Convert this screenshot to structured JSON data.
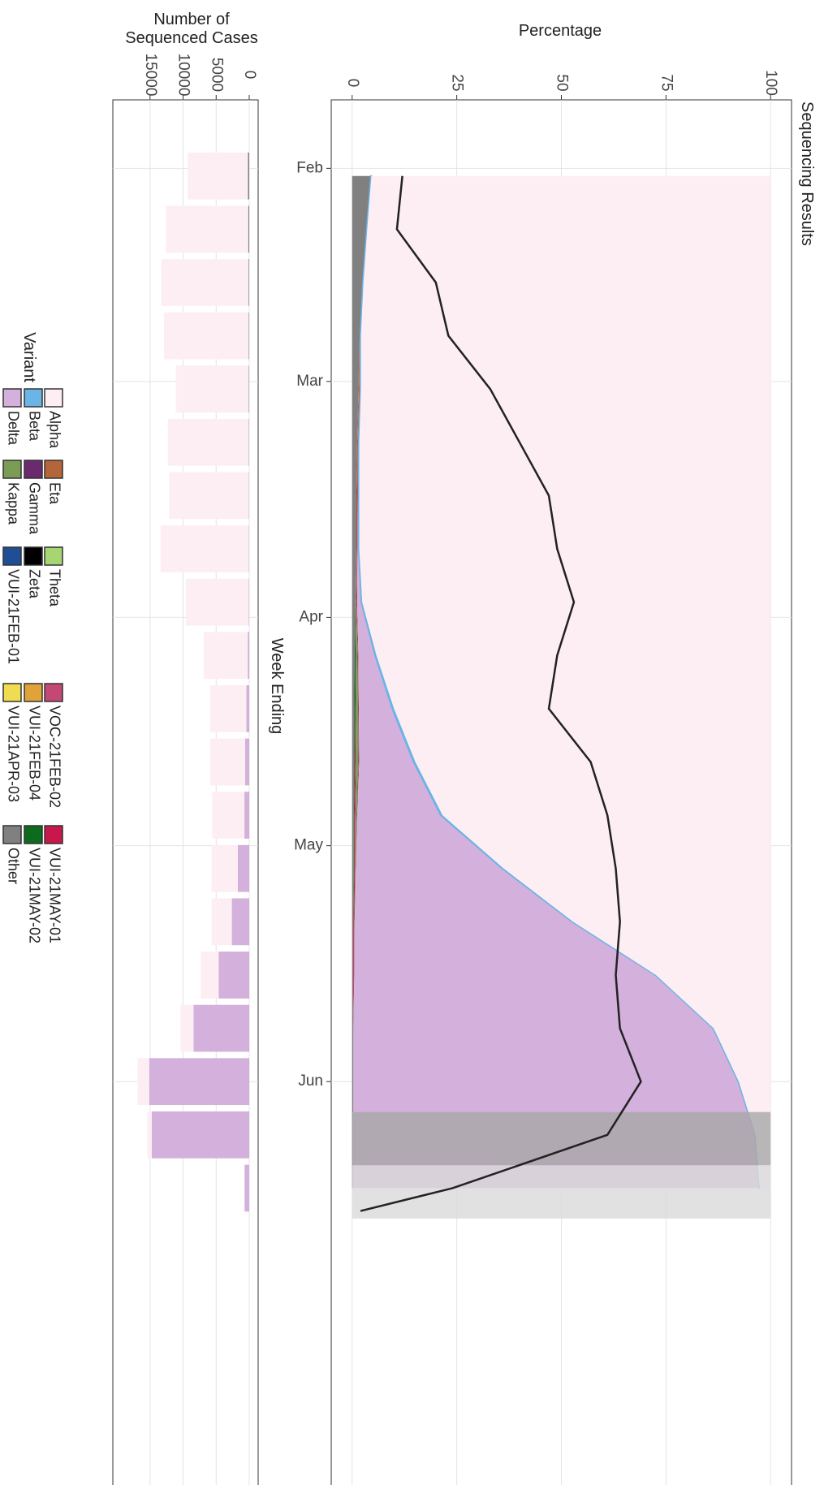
{
  "chart_data": {
    "type": "area",
    "title": "Sequencing Results",
    "x_label": "Week Ending",
    "y_label": "Percentage",
    "y2_label": "Number of Sequenced Cases",
    "legend_title": "Variant",
    "xlim": [
      23,
      205
    ],
    "xticks": [
      {
        "value": 32,
        "label": "Feb"
      },
      {
        "value": 60,
        "label": "Mar"
      },
      {
        "value": 91,
        "label": "Apr"
      },
      {
        "value": 121,
        "label": "May"
      },
      {
        "value": 152,
        "label": "Jun"
      }
    ],
    "ylim": [
      -5,
      105
    ],
    "yticks": [
      0,
      25,
      50,
      75,
      100
    ],
    "y2lim": [
      0,
      17800
    ],
    "y2ticks": [
      0,
      5000,
      10000,
      15000
    ],
    "grid": true,
    "x": [
      33,
      40,
      47,
      54,
      61,
      68,
      75,
      82,
      89,
      96,
      103,
      110,
      117,
      124,
      131,
      138,
      145,
      152,
      159,
      166
    ],
    "series": [
      {
        "name": "Alpha",
        "color": "#fdeef4",
        "values": [
          95.4,
          96.4,
          97.3,
          97.9,
          97.9,
          98.3,
          98.3,
          98.3,
          97.6,
          94.2,
          90,
          84.9,
          78.4,
          63.8,
          47.2,
          27.4,
          13.6,
          7.6,
          3.6,
          2.6
        ]
      },
      {
        "name": "Beta",
        "color": "#6ab4e6",
        "values": [
          0.1,
          0.1,
          0.1,
          0.1,
          0.1,
          0.1,
          0.1,
          0.1,
          0.2,
          0.3,
          0.4,
          0.4,
          0.4,
          0.3,
          0.2,
          0.1,
          0.1,
          0.1,
          0.1,
          0.1
        ]
      },
      {
        "name": "Delta",
        "color": "#d4b0dc",
        "values": [
          0,
          0,
          0,
          0,
          0.1,
          0.1,
          0.2,
          0.3,
          1,
          4,
          8,
          13,
          20,
          35,
          52,
          72,
          86,
          92,
          96,
          97
        ]
      },
      {
        "name": "Eta",
        "color": "#b5653a",
        "values": [
          0,
          0,
          0.1,
          0.2,
          0.3,
          0.2,
          0.2,
          0.1,
          0.1,
          0.1,
          0.1,
          0.1,
          0,
          0,
          0,
          0,
          0,
          0,
          0,
          0
        ]
      },
      {
        "name": "Gamma",
        "color": "#6b2a6e",
        "values": [
          0,
          0,
          0,
          0,
          0,
          0,
          0.1,
          0.1,
          0.1,
          0.1,
          0.1,
          0.1,
          0.1,
          0,
          0,
          0,
          0,
          0,
          0,
          0
        ]
      },
      {
        "name": "Kappa",
        "color": "#7a9c55",
        "values": [
          0,
          0,
          0,
          0,
          0,
          0,
          0,
          0,
          0.1,
          0.3,
          0.5,
          0.5,
          0.3,
          0.2,
          0.1,
          0,
          0,
          0,
          0,
          0
        ]
      },
      {
        "name": "Theta",
        "color": "#a6d672",
        "values": [
          0,
          0,
          0,
          0,
          0,
          0,
          0,
          0,
          0,
          0,
          0,
          0,
          0,
          0,
          0,
          0,
          0,
          0,
          0,
          0
        ]
      },
      {
        "name": "Zeta",
        "color": "#000000",
        "values": [
          0,
          0,
          0,
          0,
          0,
          0,
          0,
          0,
          0,
          0,
          0,
          0,
          0,
          0,
          0,
          0,
          0,
          0,
          0,
          0
        ]
      },
      {
        "name": "VUI-21FEB-01",
        "color": "#1f4e96",
        "values": [
          0,
          0,
          0,
          0,
          0,
          0,
          0,
          0,
          0,
          0,
          0,
          0,
          0,
          0,
          0,
          0,
          0,
          0,
          0,
          0
        ]
      },
      {
        "name": "VOC-21FEB-02",
        "color": "#c44874",
        "values": [
          0,
          0,
          0,
          0,
          0.1,
          0.1,
          0.1,
          0.1,
          0.1,
          0.1,
          0.1,
          0.1,
          0.1,
          0,
          0,
          0,
          0,
          0,
          0,
          0
        ]
      },
      {
        "name": "VUI-21FEB-04",
        "color": "#e0a33a",
        "values": [
          0,
          0,
          0,
          0,
          0,
          0,
          0,
          0,
          0,
          0,
          0,
          0,
          0,
          0,
          0,
          0,
          0,
          0,
          0,
          0
        ]
      },
      {
        "name": "VUI-21APR-03",
        "color": "#f0dc50",
        "values": [
          0,
          0,
          0,
          0,
          0,
          0,
          0,
          0,
          0,
          0,
          0,
          0,
          0,
          0,
          0,
          0,
          0,
          0,
          0,
          0
        ]
      },
      {
        "name": "VUI-21MAY-01",
        "color": "#c8174a",
        "values": [
          0,
          0,
          0,
          0,
          0,
          0,
          0,
          0,
          0,
          0,
          0,
          0.2,
          0.2,
          0.2,
          0.2,
          0.2,
          0,
          0,
          0,
          0
        ]
      },
      {
        "name": "VUI-21MAY-02",
        "color": "#0d6b1e",
        "values": [
          0,
          0,
          0,
          0,
          0,
          0,
          0,
          0,
          0,
          0.3,
          0.3,
          0.2,
          0.1,
          0.1,
          0,
          0,
          0,
          0,
          0,
          0
        ]
      },
      {
        "name": "Other",
        "color": "#808080",
        "values": [
          4.5,
          3.5,
          2.5,
          1.8,
          1.5,
          1.2,
          1,
          1,
          0.8,
          0.6,
          0.5,
          0.5,
          0.4,
          0.4,
          0.3,
          0.3,
          0.3,
          0.3,
          0.3,
          0.3
        ]
      }
    ],
    "line": {
      "color": "#222222",
      "x": [
        33,
        40,
        47,
        54,
        61,
        68,
        75,
        82,
        89,
        96,
        103,
        110,
        117,
        124,
        131,
        138,
        145,
        152,
        159,
        166,
        169
      ],
      "values": [
        12,
        10.7,
        20,
        23,
        33,
        40,
        47,
        49,
        53,
        49,
        47,
        57,
        61,
        63,
        64,
        63,
        64,
        69,
        61,
        24,
        2
      ]
    },
    "shaded": [
      {
        "from": 156,
        "to": 163,
        "color": "#a8a8a8"
      },
      {
        "from": 163,
        "to": 170,
        "color": "#d9d9d9"
      }
    ],
    "bar_series": [
      {
        "color": "#808080",
        "values": [
          200,
          150,
          100,
          80,
          60,
          50,
          40,
          40,
          30,
          30,
          30,
          30,
          30,
          30,
          30,
          30,
          30,
          30,
          30,
          0
        ]
      },
      {
        "color": "#d4b0dc",
        "values": [
          0,
          0,
          0,
          0,
          0,
          0,
          0,
          0,
          50,
          200,
          400,
          600,
          700,
          1700,
          2600,
          4600,
          8400,
          15100,
          14700,
          700
        ]
      },
      {
        "color": "#fdeef4",
        "values": [
          9100,
          12450,
          13200,
          12820,
          11040,
          12250,
          12060,
          13360,
          9520,
          6670,
          5470,
          5270,
          4870,
          3970,
          3070,
          2670,
          1970,
          1770,
          670,
          0
        ]
      }
    ]
  }
}
